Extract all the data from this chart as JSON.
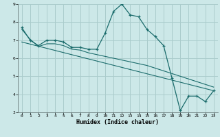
{
  "xlabel": "Humidex (Indice chaleur)",
  "ylabel": "",
  "bg_color": "#cce8e8",
  "grid_color": "#aacccc",
  "line_color": "#1a6b6b",
  "xlim": [
    -0.5,
    23.5
  ],
  "ylim": [
    3,
    9
  ],
  "xticks": [
    0,
    1,
    2,
    3,
    4,
    5,
    6,
    7,
    8,
    9,
    10,
    11,
    12,
    13,
    14,
    15,
    16,
    17,
    18,
    19,
    20,
    21,
    22,
    23
  ],
  "yticks": [
    3,
    4,
    5,
    6,
    7,
    8,
    9
  ],
  "line1_x": [
    0,
    1,
    2,
    3,
    4,
    5,
    6,
    7,
    8,
    9,
    10,
    11,
    12,
    13,
    14,
    15,
    16,
    17,
    18,
    19,
    20,
    21,
    22,
    23
  ],
  "line1_y": [
    7.7,
    7.0,
    6.7,
    7.0,
    7.0,
    6.9,
    6.6,
    6.6,
    6.5,
    6.5,
    7.4,
    8.6,
    9.0,
    8.4,
    8.3,
    7.6,
    7.2,
    6.7,
    4.9,
    3.1,
    3.9,
    3.9,
    3.6,
    4.2
  ],
  "line2_x": [
    0,
    1,
    2,
    3,
    4,
    5,
    6,
    7,
    8,
    9,
    10,
    11,
    12,
    13,
    14,
    15,
    16,
    17,
    18,
    19,
    20,
    21,
    22,
    23
  ],
  "line2_y": [
    7.6,
    7.05,
    6.65,
    6.8,
    6.8,
    6.7,
    6.5,
    6.45,
    6.3,
    6.2,
    6.1,
    6.0,
    5.9,
    5.8,
    5.7,
    5.6,
    5.45,
    5.3,
    5.15,
    5.0,
    4.85,
    4.7,
    4.55,
    4.4
  ],
  "line3_x": [
    0,
    23
  ],
  "line3_y": [
    6.9,
    4.2
  ]
}
